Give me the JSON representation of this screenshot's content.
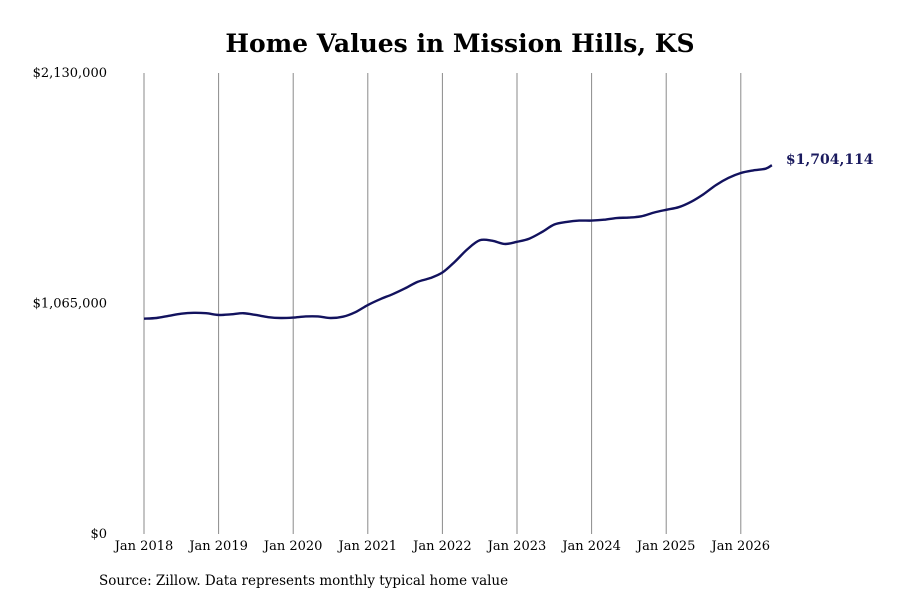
{
  "chart_data": {
    "type": "line",
    "title": "Home Values in Mission Hills, KS",
    "xlabel": "",
    "ylabel": "",
    "ylim": [
      0,
      2130000
    ],
    "y_ticks": [
      "$0",
      "$1,065,000",
      "$2,130,000"
    ],
    "y_tick_values": [
      0,
      1065000,
      2130000
    ],
    "x_tick_labels": [
      "Jan 2018",
      "Jan 2019",
      "Jan 2020",
      "Jan 2021",
      "Jan 2022",
      "Jan 2023",
      "Jan 2024",
      "Jan 2025",
      "Jan 2026"
    ],
    "grid": "vertical lines at each January",
    "line_color": "#12125e",
    "end_label": "$1,704,114",
    "source_note": "Source: Zillow. Data represents monthly typical home value",
    "series": [
      {
        "points": [
          [
            "2018-01",
            995000
          ],
          [
            "2018-03",
            998000
          ],
          [
            "2018-05",
            1008000
          ],
          [
            "2018-07",
            1018000
          ],
          [
            "2018-09",
            1022000
          ],
          [
            "2018-11",
            1020000
          ],
          [
            "2019-01",
            1012000
          ],
          [
            "2019-03",
            1015000
          ],
          [
            "2019-05",
            1020000
          ],
          [
            "2019-07",
            1012000
          ],
          [
            "2019-09",
            1002000
          ],
          [
            "2019-11",
            998000
          ],
          [
            "2020-01",
            1000000
          ],
          [
            "2020-03",
            1005000
          ],
          [
            "2020-05",
            1005000
          ],
          [
            "2020-07",
            998000
          ],
          [
            "2020-09",
            1004000
          ],
          [
            "2020-11",
            1025000
          ],
          [
            "2021-01",
            1058000
          ],
          [
            "2021-03",
            1085000
          ],
          [
            "2021-05",
            1108000
          ],
          [
            "2021-07",
            1135000
          ],
          [
            "2021-09",
            1165000
          ],
          [
            "2021-11",
            1182000
          ],
          [
            "2022-01",
            1208000
          ],
          [
            "2022-03",
            1258000
          ],
          [
            "2022-05",
            1315000
          ],
          [
            "2022-07",
            1357000
          ],
          [
            "2022-09",
            1355000
          ],
          [
            "2022-11",
            1340000
          ],
          [
            "2023-01",
            1350000
          ],
          [
            "2023-03",
            1365000
          ],
          [
            "2023-05",
            1395000
          ],
          [
            "2023-07",
            1430000
          ],
          [
            "2023-09",
            1442000
          ],
          [
            "2023-11",
            1448000
          ],
          [
            "2024-01",
            1448000
          ],
          [
            "2024-03",
            1452000
          ],
          [
            "2024-05",
            1460000
          ],
          [
            "2024-07",
            1462000
          ],
          [
            "2024-09",
            1468000
          ],
          [
            "2024-11",
            1485000
          ],
          [
            "2025-01",
            1498000
          ],
          [
            "2025-03",
            1510000
          ],
          [
            "2025-05",
            1535000
          ],
          [
            "2025-07",
            1570000
          ],
          [
            "2025-09",
            1612000
          ],
          [
            "2025-11",
            1645000
          ],
          [
            "2026-01",
            1668000
          ],
          [
            "2026-03",
            1680000
          ],
          [
            "2026-05",
            1688000
          ],
          [
            "2026-06",
            1704114
          ]
        ]
      }
    ]
  }
}
